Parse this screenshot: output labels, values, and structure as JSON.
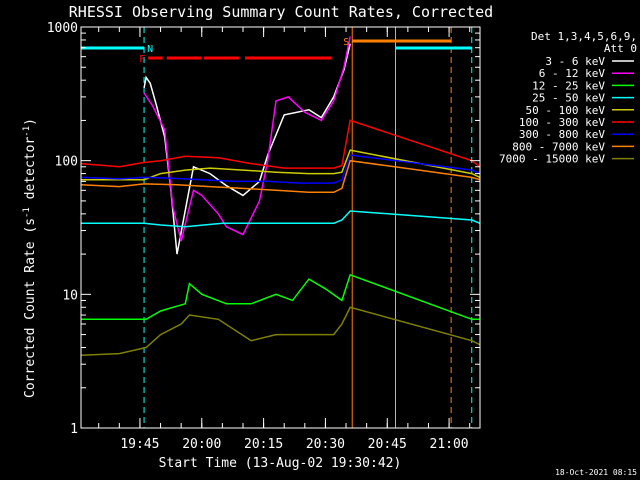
{
  "chart_data": {
    "type": "line",
    "title": "RHESSI Observing Summary Count Rates, Corrected",
    "xlabel": "Start Time (13-Aug-02 19:30:42)",
    "ylabel": "Corrected Count Rate (s⁻¹ detector⁻¹)",
    "ylabel_parts": [
      "Corrected Count Rate (s",
      "-1",
      " detector",
      "-1",
      ")"
    ],
    "yscale": "log",
    "xlim": [
      "19:30:42",
      "21:07:30"
    ],
    "ylim": [
      1,
      1000
    ],
    "xticks": [
      "19:45",
      "20:00",
      "20:15",
      "20:30",
      "20:45",
      "21:00"
    ],
    "yticks": [
      "1",
      "10",
      "100",
      "1000"
    ],
    "timestamp": "18-Oct-2021 08:15",
    "legend": {
      "placement": "right",
      "header": [
        "Det 1,3,4,5,6,9,",
        "Att 0"
      ],
      "entries": [
        {
          "label": "3 - 6 keV",
          "color": "#ffffff"
        },
        {
          "label": "6 - 12 keV",
          "color": "#ff00ff"
        },
        {
          "label": "12 - 25 keV",
          "color": "#00ff00"
        },
        {
          "label": "25 - 50 keV",
          "color": "#00ffff"
        },
        {
          "label": "50 - 100 keV",
          "color": "#cccc00"
        },
        {
          "label": "100 - 300 keV",
          "color": "#ff0000"
        },
        {
          "label": "300 - 800 keV",
          "color": "#0000ff"
        },
        {
          "label": "800 - 7000 keV",
          "color": "#ff8000"
        },
        {
          "label": "7000 - 15000 keV",
          "color": "#808000"
        }
      ]
    },
    "flag_bars": [
      {
        "label": "N",
        "color": "#00ffff",
        "segments": [
          [
            "19:30:42",
            "19:46:00"
          ],
          [
            "20:47:00",
            "21:05:30"
          ]
        ]
      },
      {
        "label": "F",
        "color": "#ff0000",
        "segments": [
          [
            "19:47:00",
            "19:50:30"
          ],
          [
            "19:51:30",
            "20:00:00"
          ],
          [
            "20:00:30",
            "20:09:00"
          ],
          [
            "20:10:30",
            "20:31:30"
          ]
        ]
      },
      {
        "label": "S",
        "color": "#ff8000",
        "segments": [
          [
            "20:36:30",
            "21:00:30"
          ]
        ]
      }
    ],
    "vertical_markers": [
      {
        "time": "19:46:00",
        "color": "#00ffff",
        "style": "dashed"
      },
      {
        "time": "20:36:30",
        "color": "#ff8000",
        "style": "solid"
      },
      {
        "time": "20:47:00",
        "color": "#00ffff",
        "style": "solid"
      },
      {
        "time": "21:00:30",
        "color": "#ff8000",
        "style": "dashed"
      },
      {
        "time": "21:05:30",
        "color": "#00ffff",
        "style": "dashed"
      }
    ],
    "series": [
      {
        "name": "3 - 6 keV",
        "color": "#ffffff",
        "x": [
          "19:46:00",
          "19:46:30",
          "19:47:30",
          "19:49:00",
          "19:51:00",
          "19:52:30",
          "19:54:00",
          "19:58:00",
          "20:02:00",
          "20:06:00",
          "20:10:00",
          "20:14:00",
          "20:16:00",
          "20:20:00",
          "20:26:00",
          "20:29:00",
          "20:32:00",
          "20:34:30",
          "20:36:00"
        ],
        "y": [
          350,
          420,
          380,
          260,
          150,
          60,
          20,
          90,
          80,
          65,
          55,
          70,
          110,
          220,
          240,
          210,
          300,
          480,
          750
        ]
      },
      {
        "name": "6 - 12 keV",
        "color": "#ff00ff",
        "x": [
          "19:46:00",
          "19:48:00",
          "19:51:00",
          "19:53:00",
          "19:55:00",
          "19:58:00",
          "20:00:00",
          "20:04:00",
          "20:06:00",
          "20:10:00",
          "20:14:00",
          "20:16:00",
          "20:18:00",
          "20:21:00",
          "20:25:00",
          "20:29:00",
          "20:32:00",
          "20:34:30",
          "20:36:00"
        ],
        "y": [
          320,
          260,
          170,
          45,
          25,
          60,
          55,
          40,
          32,
          28,
          50,
          100,
          280,
          300,
          230,
          200,
          280,
          500,
          850
        ]
      },
      {
        "name": "12 - 25 keV",
        "color": "#00ff00",
        "x": [
          "19:30:42",
          "19:45:00",
          "19:46:30",
          "19:50:00",
          "19:53:00",
          "19:56:00",
          "19:57:00",
          "20:00:00",
          "20:06:00",
          "20:12:00",
          "20:18:00",
          "20:22:00",
          "20:26:00",
          "20:30:00",
          "20:34:00",
          "20:36:00",
          "21:05:30",
          "21:07:30"
        ],
        "y": [
          6.5,
          6.5,
          6.5,
          7.5,
          8,
          8.5,
          12,
          10,
          8.5,
          8.5,
          10,
          9,
          13,
          11,
          9,
          14,
          6.5,
          6.5
        ]
      },
      {
        "name": "25 - 50 keV",
        "color": "#00ffff",
        "x": [
          "19:30:42",
          "19:46:00",
          "19:50:00",
          "19:56:00",
          "20:05:00",
          "20:14:00",
          "20:22:00",
          "20:32:00",
          "20:34:00",
          "20:36:00",
          "21:05:30",
          "21:07:30"
        ],
        "y": [
          34,
          34,
          33,
          32,
          34,
          34,
          34,
          34,
          36,
          42,
          36,
          34
        ]
      },
      {
        "name": "50 - 100 keV",
        "color": "#cccc00",
        "x": [
          "19:30:42",
          "19:46:00",
          "19:50:00",
          "19:56:00",
          "20:02:00",
          "20:10:00",
          "20:18:00",
          "20:26:00",
          "20:32:00",
          "20:34:00",
          "20:36:00",
          "21:05:30",
          "21:07:30"
        ],
        "y": [
          72,
          72,
          80,
          85,
          88,
          85,
          82,
          80,
          80,
          82,
          120,
          80,
          75
        ]
      },
      {
        "name": "100 - 300 keV",
        "color": "#ff0000",
        "x": [
          "19:30:42",
          "19:40:00",
          "19:46:00",
          "19:50:00",
          "19:56:00",
          "20:04:00",
          "20:12:00",
          "20:20:00",
          "20:28:00",
          "20:32:00",
          "20:34:00",
          "20:36:00",
          "21:05:30",
          "21:07:30"
        ],
        "y": [
          95,
          90,
          97,
          100,
          108,
          105,
          95,
          88,
          88,
          88,
          92,
          200,
          100,
          90
        ]
      },
      {
        "name": "300 - 800 keV",
        "color": "#0000ff",
        "x": [
          "19:30:42",
          "19:40:00",
          "19:46:00",
          "19:52:00",
          "20:00:00",
          "20:08:00",
          "20:16:00",
          "20:24:00",
          "20:32:00",
          "20:34:00",
          "20:36:00",
          "21:05:30",
          "21:07:30"
        ],
        "y": [
          75,
          73,
          75,
          74,
          72,
          70,
          70,
          68,
          68,
          72,
          110,
          85,
          80
        ]
      },
      {
        "name": "800 - 7000 keV",
        "color": "#ff8000",
        "x": [
          "19:30:42",
          "19:40:00",
          "19:46:00",
          "19:54:00",
          "20:02:00",
          "20:10:00",
          "20:18:00",
          "20:26:00",
          "20:32:00",
          "20:34:00",
          "20:36:00",
          "21:05:30",
          "21:07:30"
        ],
        "y": [
          66,
          64,
          67,
          66,
          64,
          62,
          60,
          58,
          58,
          62,
          100,
          75,
          72
        ]
      },
      {
        "name": "7000 - 15000 keV",
        "color": "#808000",
        "x": [
          "19:30:42",
          "19:40:00",
          "19:46:30",
          "19:50:00",
          "19:55:00",
          "19:57:00",
          "20:04:00",
          "20:12:00",
          "20:18:00",
          "20:26:00",
          "20:32:00",
          "20:34:00",
          "20:36:00",
          "21:05:30",
          "21:07:30"
        ],
        "y": [
          3.5,
          3.6,
          4,
          5,
          6,
          7,
          6.5,
          4.5,
          5,
          5,
          5,
          6,
          8,
          4.5,
          4.2
        ]
      }
    ]
  }
}
